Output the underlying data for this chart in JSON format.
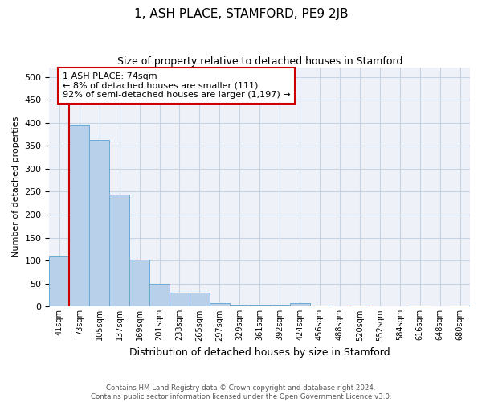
{
  "title": "1, ASH PLACE, STAMFORD, PE9 2JB",
  "subtitle": "Size of property relative to detached houses in Stamford",
  "xlabel": "Distribution of detached houses by size in Stamford",
  "ylabel": "Number of detached properties",
  "bar_color": "#b8d0ea",
  "bar_edge_color": "#6aaad4",
  "background_color": "#eef2f8",
  "grid_color": "#c8d4e4",
  "annotation_box_color": "#cc0000",
  "annotation_line_color": "#cc0000",
  "bins": [
    "41sqm",
    "73sqm",
    "105sqm",
    "137sqm",
    "169sqm",
    "201sqm",
    "233sqm",
    "265sqm",
    "297sqm",
    "329sqm",
    "361sqm",
    "392sqm",
    "424sqm",
    "456sqm",
    "488sqm",
    "520sqm",
    "552sqm",
    "584sqm",
    "616sqm",
    "648sqm",
    "680sqm"
  ],
  "values": [
    110,
    395,
    362,
    243,
    103,
    50,
    30,
    30,
    8,
    5,
    5,
    5,
    8,
    2,
    0,
    2,
    0,
    0,
    2,
    0,
    2
  ],
  "ylim": [
    0,
    520
  ],
  "yticks": [
    0,
    50,
    100,
    150,
    200,
    250,
    300,
    350,
    400,
    450,
    500
  ],
  "annotation_text_line1": "1 ASH PLACE: 74sqm",
  "annotation_text_line2": "← 8% of detached houses are smaller (111)",
  "annotation_text_line3": "92% of semi-detached houses are larger (1,197) →",
  "footer_line1": "Contains HM Land Registry data © Crown copyright and database right 2024.",
  "footer_line2": "Contains public sector information licensed under the Open Government Licence v3.0."
}
